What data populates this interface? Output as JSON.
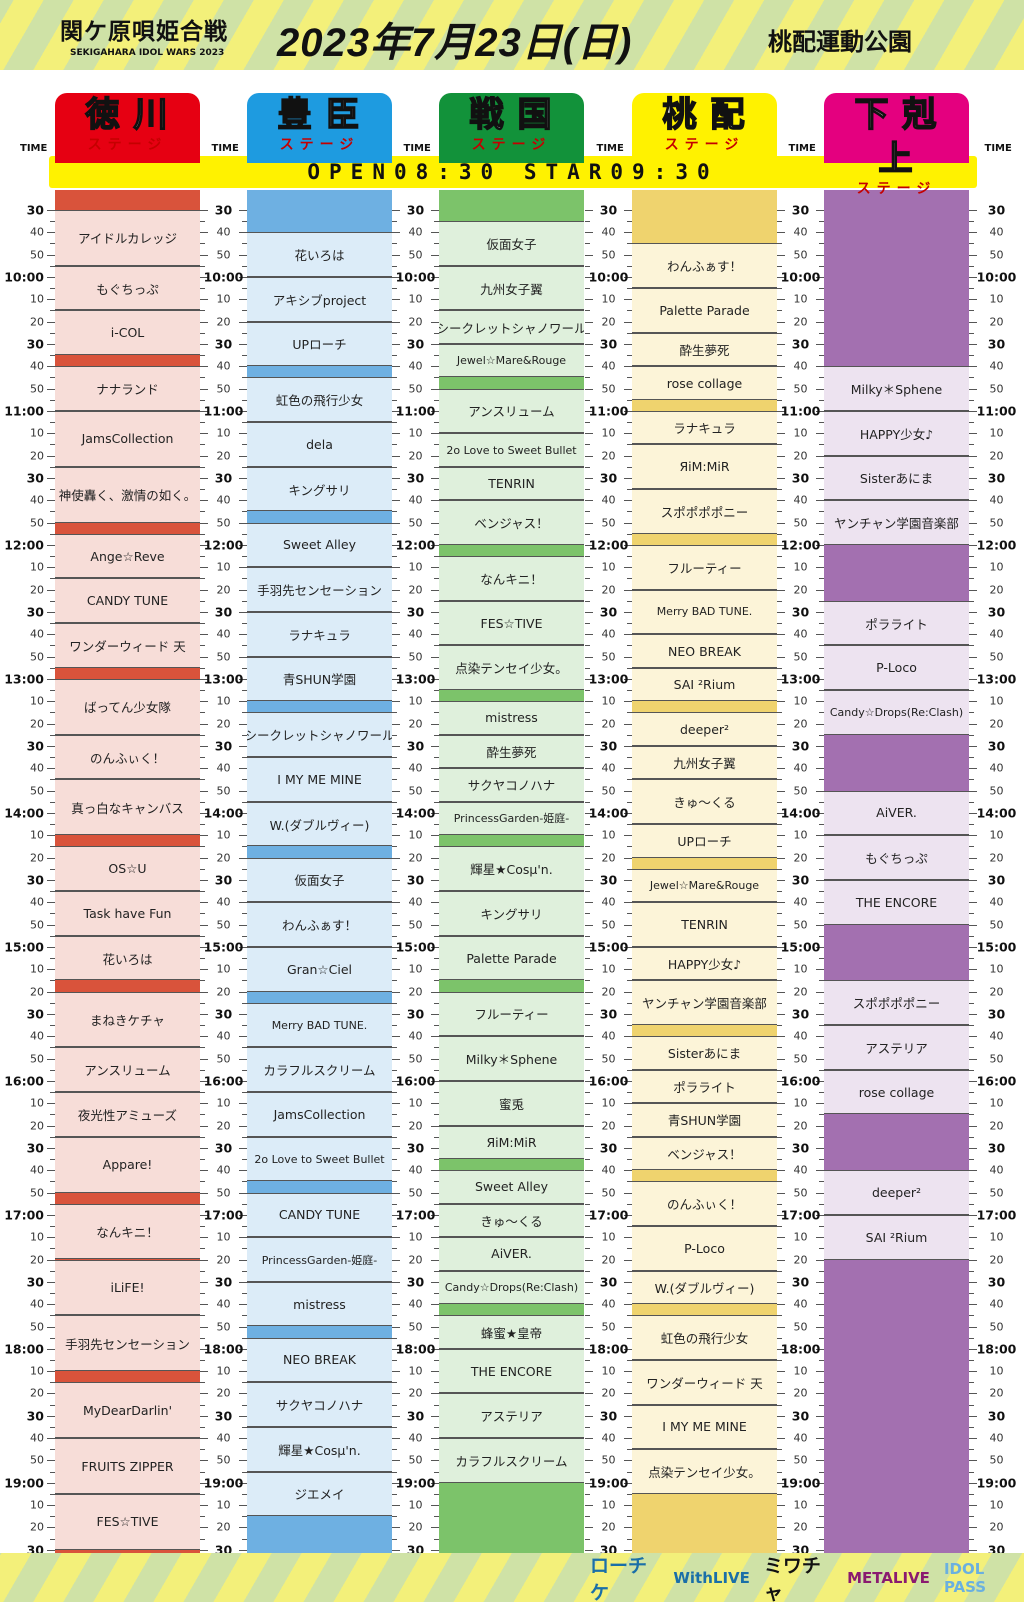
{
  "header": {
    "event_logo": "関ケ原唄姫合戦",
    "event_logo_sub": "SEKIGAHARA IDOL WARS 2023",
    "date": "2023年7月23日(日)",
    "venue": "桃配運動公園"
  },
  "time_header": "TIME",
  "open_bar": "OPEN08:30 STAR09:30",
  "time_axis": {
    "labels": [
      "30",
      "40",
      "50",
      "10:00",
      "10",
      "20",
      "30",
      "40",
      "50",
      "11:00",
      "10",
      "20",
      "30",
      "40",
      "50",
      "12:00",
      "10",
      "20",
      "30",
      "40",
      "50",
      "13:00",
      "10",
      "20",
      "30",
      "40",
      "50",
      "14:00",
      "10",
      "20",
      "30",
      "40",
      "50",
      "15:00",
      "10",
      "20",
      "30",
      "40",
      "50",
      "16:00",
      "10",
      "20",
      "30",
      "40",
      "50",
      "17:00",
      "10",
      "20",
      "30",
      "40",
      "50",
      "18:00",
      "10",
      "20",
      "30",
      "40",
      "50",
      "19:00",
      "10",
      "20",
      "30"
    ]
  },
  "stages": [
    {
      "name": "徳川",
      "sub": "ステージ",
      "tab_color": "#e60012",
      "dark": "#d9533b",
      "light": "#f7ddd8",
      "acts": [
        {
          "name": "アイドルカレッジ",
          "start": "9:30",
          "end": "9:55"
        },
        {
          "name": "もぐちっぷ",
          "start": "9:55",
          "end": "10:15"
        },
        {
          "name": "i-COL",
          "start": "10:15",
          "end": "10:35"
        },
        {
          "name": "ナナランド",
          "start": "10:40",
          "end": "11:00"
        },
        {
          "name": "JamsCollection",
          "start": "11:00",
          "end": "11:25"
        },
        {
          "name": "神使轟く、激情の如く。",
          "start": "11:25",
          "end": "11:50"
        },
        {
          "name": "Ange☆Reve",
          "start": "11:55",
          "end": "12:15"
        },
        {
          "name": "CANDY TUNE",
          "start": "12:15",
          "end": "12:35"
        },
        {
          "name": "ワンダーウィード 天",
          "start": "12:35",
          "end": "12:55"
        },
        {
          "name": "ばってん少女隊",
          "start": "13:00",
          "end": "13:25"
        },
        {
          "name": "のんふぃく！",
          "start": "13:25",
          "end": "13:45"
        },
        {
          "name": "真っ白なキャンバス",
          "start": "13:45",
          "end": "14:10"
        },
        {
          "name": "OS☆U",
          "start": "14:15",
          "end": "14:35"
        },
        {
          "name": "Task have Fun",
          "start": "14:35",
          "end": "14:55"
        },
        {
          "name": "花いろは",
          "start": "14:55",
          "end": "15:15"
        },
        {
          "name": "まねきケチャ",
          "start": "15:20",
          "end": "15:45"
        },
        {
          "name": "アンスリューム",
          "start": "15:45",
          "end": "16:05"
        },
        {
          "name": "夜光性アミューズ",
          "start": "16:05",
          "end": "16:25"
        },
        {
          "name": "Appare!",
          "start": "16:25",
          "end": "16:50"
        },
        {
          "name": "なんキニ！",
          "start": "16:55",
          "end": "17:20"
        },
        {
          "name": "iLiFE!",
          "start": "17:20",
          "end": "17:45"
        },
        {
          "name": "手羽先センセーション",
          "start": "17:45",
          "end": "18:10"
        },
        {
          "name": "MyDearDarlin'",
          "start": "18:15",
          "end": "18:40"
        },
        {
          "name": "FRUITS ZIPPER",
          "start": "18:40",
          "end": "19:05"
        },
        {
          "name": "FES☆TIVE",
          "start": "19:05",
          "end": "19:30"
        }
      ]
    },
    {
      "name": "豊臣",
      "sub": "ステージ",
      "tab_color": "#1e9be0",
      "dark": "#6eb0e2",
      "light": "#dcecf8",
      "acts": [
        {
          "name": "花いろは",
          "start": "9:40",
          "end": "10:00"
        },
        {
          "name": "アキシブproject",
          "start": "10:00",
          "end": "10:20"
        },
        {
          "name": "UPローチ",
          "start": "10:20",
          "end": "10:40"
        },
        {
          "name": "虹色の飛行少女",
          "start": "10:45",
          "end": "11:05"
        },
        {
          "name": "dela",
          "start": "11:05",
          "end": "11:25"
        },
        {
          "name": "キングサリ",
          "start": "11:25",
          "end": "11:45"
        },
        {
          "name": "Sweet Alley",
          "start": "11:50",
          "end": "12:10"
        },
        {
          "name": "手羽先センセーション",
          "start": "12:10",
          "end": "12:30"
        },
        {
          "name": "ラナキュラ",
          "start": "12:30",
          "end": "12:50"
        },
        {
          "name": "青SHUN学園",
          "start": "12:50",
          "end": "13:10"
        },
        {
          "name": "シークレットシャノワール",
          "start": "13:15",
          "end": "13:35"
        },
        {
          "name": "I MY ME MINE",
          "start": "13:35",
          "end": "13:55"
        },
        {
          "name": "W.(ダブルヴィー)",
          "start": "13:55",
          "end": "14:15"
        },
        {
          "name": "仮面女子",
          "start": "14:20",
          "end": "14:40"
        },
        {
          "name": "わんふぁす！",
          "start": "14:40",
          "end": "15:00"
        },
        {
          "name": "Gran☆Ciel",
          "start": "15:00",
          "end": "15:20"
        },
        {
          "name": "Merry BAD TUNE.",
          "start": "15:25",
          "end": "15:45"
        },
        {
          "name": "カラフルスクリーム",
          "start": "15:45",
          "end": "16:05"
        },
        {
          "name": "JamsCollection",
          "start": "16:05",
          "end": "16:25"
        },
        {
          "name": "2o Love to Sweet Bullet",
          "start": "16:25",
          "end": "16:45"
        },
        {
          "name": "CANDY TUNE",
          "start": "16:50",
          "end": "17:10"
        },
        {
          "name": "PrincessGarden-姫庭-",
          "start": "17:10",
          "end": "17:30"
        },
        {
          "name": "mistress",
          "start": "17:30",
          "end": "17:50"
        },
        {
          "name": "NEO BREAK",
          "start": "17:55",
          "end": "18:15"
        },
        {
          "name": "サクヤコノハナ",
          "start": "18:15",
          "end": "18:35"
        },
        {
          "name": "輝星★Cosμ'n.",
          "start": "18:35",
          "end": "18:55"
        },
        {
          "name": "ジエメイ",
          "start": "18:55",
          "end": "19:15"
        }
      ]
    },
    {
      "name": "戦国",
      "sub": "ステージ",
      "tab_color": "#12923a",
      "dark": "#7cc36a",
      "light": "#dff0dc",
      "acts": [
        {
          "name": "仮面女子",
          "start": "9:35",
          "end": "9:55"
        },
        {
          "name": "九州女子翼",
          "start": "9:55",
          "end": "10:15"
        },
        {
          "name": "シークレットシャノワール",
          "start": "10:15",
          "end": "10:30"
        },
        {
          "name": "Jewel☆Mare&Rouge",
          "start": "10:30",
          "end": "10:45"
        },
        {
          "name": "アンスリューム",
          "start": "10:50",
          "end": "11:10"
        },
        {
          "name": "2o Love to Sweet Bullet",
          "start": "11:10",
          "end": "11:25"
        },
        {
          "name": "TENRIN",
          "start": "11:25",
          "end": "11:40"
        },
        {
          "name": "ベンジャス！",
          "start": "11:40",
          "end": "12:00"
        },
        {
          "name": "なんキニ！",
          "start": "12:05",
          "end": "12:25"
        },
        {
          "name": "FES☆TIVE",
          "start": "12:25",
          "end": "12:45"
        },
        {
          "name": "点染テンセイ少女。",
          "start": "12:45",
          "end": "13:05"
        },
        {
          "name": "mistress",
          "start": "13:10",
          "end": "13:25"
        },
        {
          "name": "酔生夢死",
          "start": "13:25",
          "end": "13:40"
        },
        {
          "name": "サクヤコノハナ",
          "start": "13:40",
          "end": "13:55"
        },
        {
          "name": "PrincessGarden-姫庭-",
          "start": "13:55",
          "end": "14:10"
        },
        {
          "name": "輝星★Cosμ'n.",
          "start": "14:15",
          "end": "14:35"
        },
        {
          "name": "キングサリ",
          "start": "14:35",
          "end": "14:55"
        },
        {
          "name": "Palette Parade",
          "start": "14:55",
          "end": "15:15"
        },
        {
          "name": "フルーティー",
          "start": "15:20",
          "end": "15:40"
        },
        {
          "name": "Milky＊Sphene",
          "start": "15:40",
          "end": "16:00"
        },
        {
          "name": "蜜兎",
          "start": "16:00",
          "end": "16:20"
        },
        {
          "name": "ЯiM:MiR",
          "start": "16:20",
          "end": "16:35"
        },
        {
          "name": "Sweet Alley",
          "start": "16:40",
          "end": "16:55"
        },
        {
          "name": "きゅ〜くる",
          "start": "16:55",
          "end": "17:10"
        },
        {
          "name": "AiVER.",
          "start": "17:10",
          "end": "17:25"
        },
        {
          "name": "Candy☆Drops(Re:Clash)",
          "start": "17:25",
          "end": "17:40"
        },
        {
          "name": "蜂蜜★皇帝",
          "start": "17:45",
          "end": "18:00"
        },
        {
          "name": "THE ENCORE",
          "start": "18:00",
          "end": "18:20"
        },
        {
          "name": "アステリア",
          "start": "18:20",
          "end": "18:40"
        },
        {
          "name": "カラフルスクリーム",
          "start": "18:40",
          "end": "19:00"
        }
      ]
    },
    {
      "name": "桃配",
      "sub": "ステージ",
      "tab_color": "#fff200",
      "dark": "#efd36e",
      "light": "#fcf4d8",
      "acts": [
        {
          "name": "わんふぁす！",
          "start": "9:45",
          "end": "10:05"
        },
        {
          "name": "Palette Parade",
          "start": "10:05",
          "end": "10:25"
        },
        {
          "name": "酔生夢死",
          "start": "10:25",
          "end": "10:40"
        },
        {
          "name": "rose collage",
          "start": "10:40",
          "end": "10:55"
        },
        {
          "name": "ラナキュラ",
          "start": "11:00",
          "end": "11:15"
        },
        {
          "name": "ЯiM:MiR",
          "start": "11:15",
          "end": "11:35"
        },
        {
          "name": "スポポポポニー",
          "start": "11:35",
          "end": "11:55"
        },
        {
          "name": "フルーティー",
          "start": "12:00",
          "end": "12:20"
        },
        {
          "name": "Merry BAD TUNE.",
          "start": "12:20",
          "end": "12:40"
        },
        {
          "name": "NEO BREAK",
          "start": "12:40",
          "end": "12:55"
        },
        {
          "name": "SAI ²Rium",
          "start": "12:55",
          "end": "13:10"
        },
        {
          "name": "deeper²",
          "start": "13:15",
          "end": "13:30"
        },
        {
          "name": "九州女子翼",
          "start": "13:30",
          "end": "13:45"
        },
        {
          "name": "きゅ〜くる",
          "start": "13:45",
          "end": "14:05"
        },
        {
          "name": "UPローチ",
          "start": "14:05",
          "end": "14:20"
        },
        {
          "name": "Jewel☆Mare&Rouge",
          "start": "14:25",
          "end": "14:40"
        },
        {
          "name": "TENRIN",
          "start": "14:40",
          "end": "15:00"
        },
        {
          "name": "HAPPY少女♪",
          "start": "15:00",
          "end": "15:15"
        },
        {
          "name": "ヤンチャン学園音楽部",
          "start": "15:15",
          "end": "15:35"
        },
        {
          "name": "Sisterあにま",
          "start": "15:40",
          "end": "15:55"
        },
        {
          "name": "ポラライト",
          "start": "15:55",
          "end": "16:10"
        },
        {
          "name": "青SHUN学園",
          "start": "16:10",
          "end": "16:25"
        },
        {
          "name": "ベンジャス！",
          "start": "16:25",
          "end": "16:40"
        },
        {
          "name": "のんふぃく！",
          "start": "16:45",
          "end": "17:05"
        },
        {
          "name": "P-Loco",
          "start": "17:05",
          "end": "17:25"
        },
        {
          "name": "W.(ダブルヴィー)",
          "start": "17:25",
          "end": "17:40"
        },
        {
          "name": "虹色の飛行少女",
          "start": "17:45",
          "end": "18:05"
        },
        {
          "name": "ワンダーウィード 天",
          "start": "18:05",
          "end": "18:25"
        },
        {
          "name": "I MY ME MINE",
          "start": "18:25",
          "end": "18:45"
        },
        {
          "name": "点染テンセイ少女。",
          "start": "18:45",
          "end": "19:05"
        }
      ]
    },
    {
      "name": "下剋上",
      "sub": "ステージ",
      "tab_color": "#e4007f",
      "dark": "#a370b0",
      "light": "#ede3f0",
      "acts": [
        {
          "name": "Milky＊Sphene",
          "start": "10:40",
          "end": "11:00"
        },
        {
          "name": "HAPPY少女♪",
          "start": "11:00",
          "end": "11:20"
        },
        {
          "name": "Sisterあにま",
          "start": "11:20",
          "end": "11:40"
        },
        {
          "name": "ヤンチャン学園音楽部",
          "start": "11:40",
          "end": "12:00"
        },
        {
          "name": "ポラライト",
          "start": "12:25",
          "end": "12:45"
        },
        {
          "name": "P-Loco",
          "start": "12:45",
          "end": "13:05"
        },
        {
          "name": "Candy☆Drops(Re:Clash)",
          "start": "13:05",
          "end": "13:25"
        },
        {
          "name": "AiVER.",
          "start": "13:50",
          "end": "14:10"
        },
        {
          "name": "もぐちっぷ",
          "start": "14:10",
          "end": "14:30"
        },
        {
          "name": "THE ENCORE",
          "start": "14:30",
          "end": "14:50"
        },
        {
          "name": "スポポポポニー",
          "start": "15:15",
          "end": "15:35"
        },
        {
          "name": "アステリア",
          "start": "15:35",
          "end": "15:55"
        },
        {
          "name": "rose collage",
          "start": "15:55",
          "end": "16:15"
        },
        {
          "name": "deeper²",
          "start": "16:40",
          "end": "17:00"
        },
        {
          "name": "SAI ²Rium",
          "start": "17:00",
          "end": "17:20"
        }
      ]
    }
  ],
  "sponsors": [
    {
      "name": "ローチケ",
      "color": "#1a6fa8"
    },
    {
      "name": "WithLIVE",
      "color": "#1a6fa8"
    },
    {
      "name": "ミワチャ",
      "color": "#111111"
    },
    {
      "name": "METALIVE",
      "color": "#8a1a70"
    },
    {
      "name": "IDOL PASS",
      "color": "#6ab0e0"
    }
  ]
}
